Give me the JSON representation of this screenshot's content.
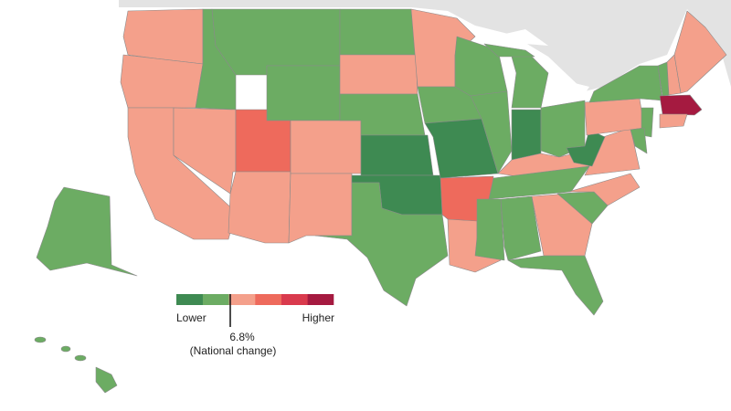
{
  "legend": {
    "colors": [
      "#3e8a52",
      "#6cac63",
      "#f4a08b",
      "#ee6a5c",
      "#d93a4d",
      "#a51a40"
    ],
    "low_label": "Lower",
    "high_label": "Higher",
    "marker_value": "6.8%",
    "marker_caption": "(National change)"
  }
}
